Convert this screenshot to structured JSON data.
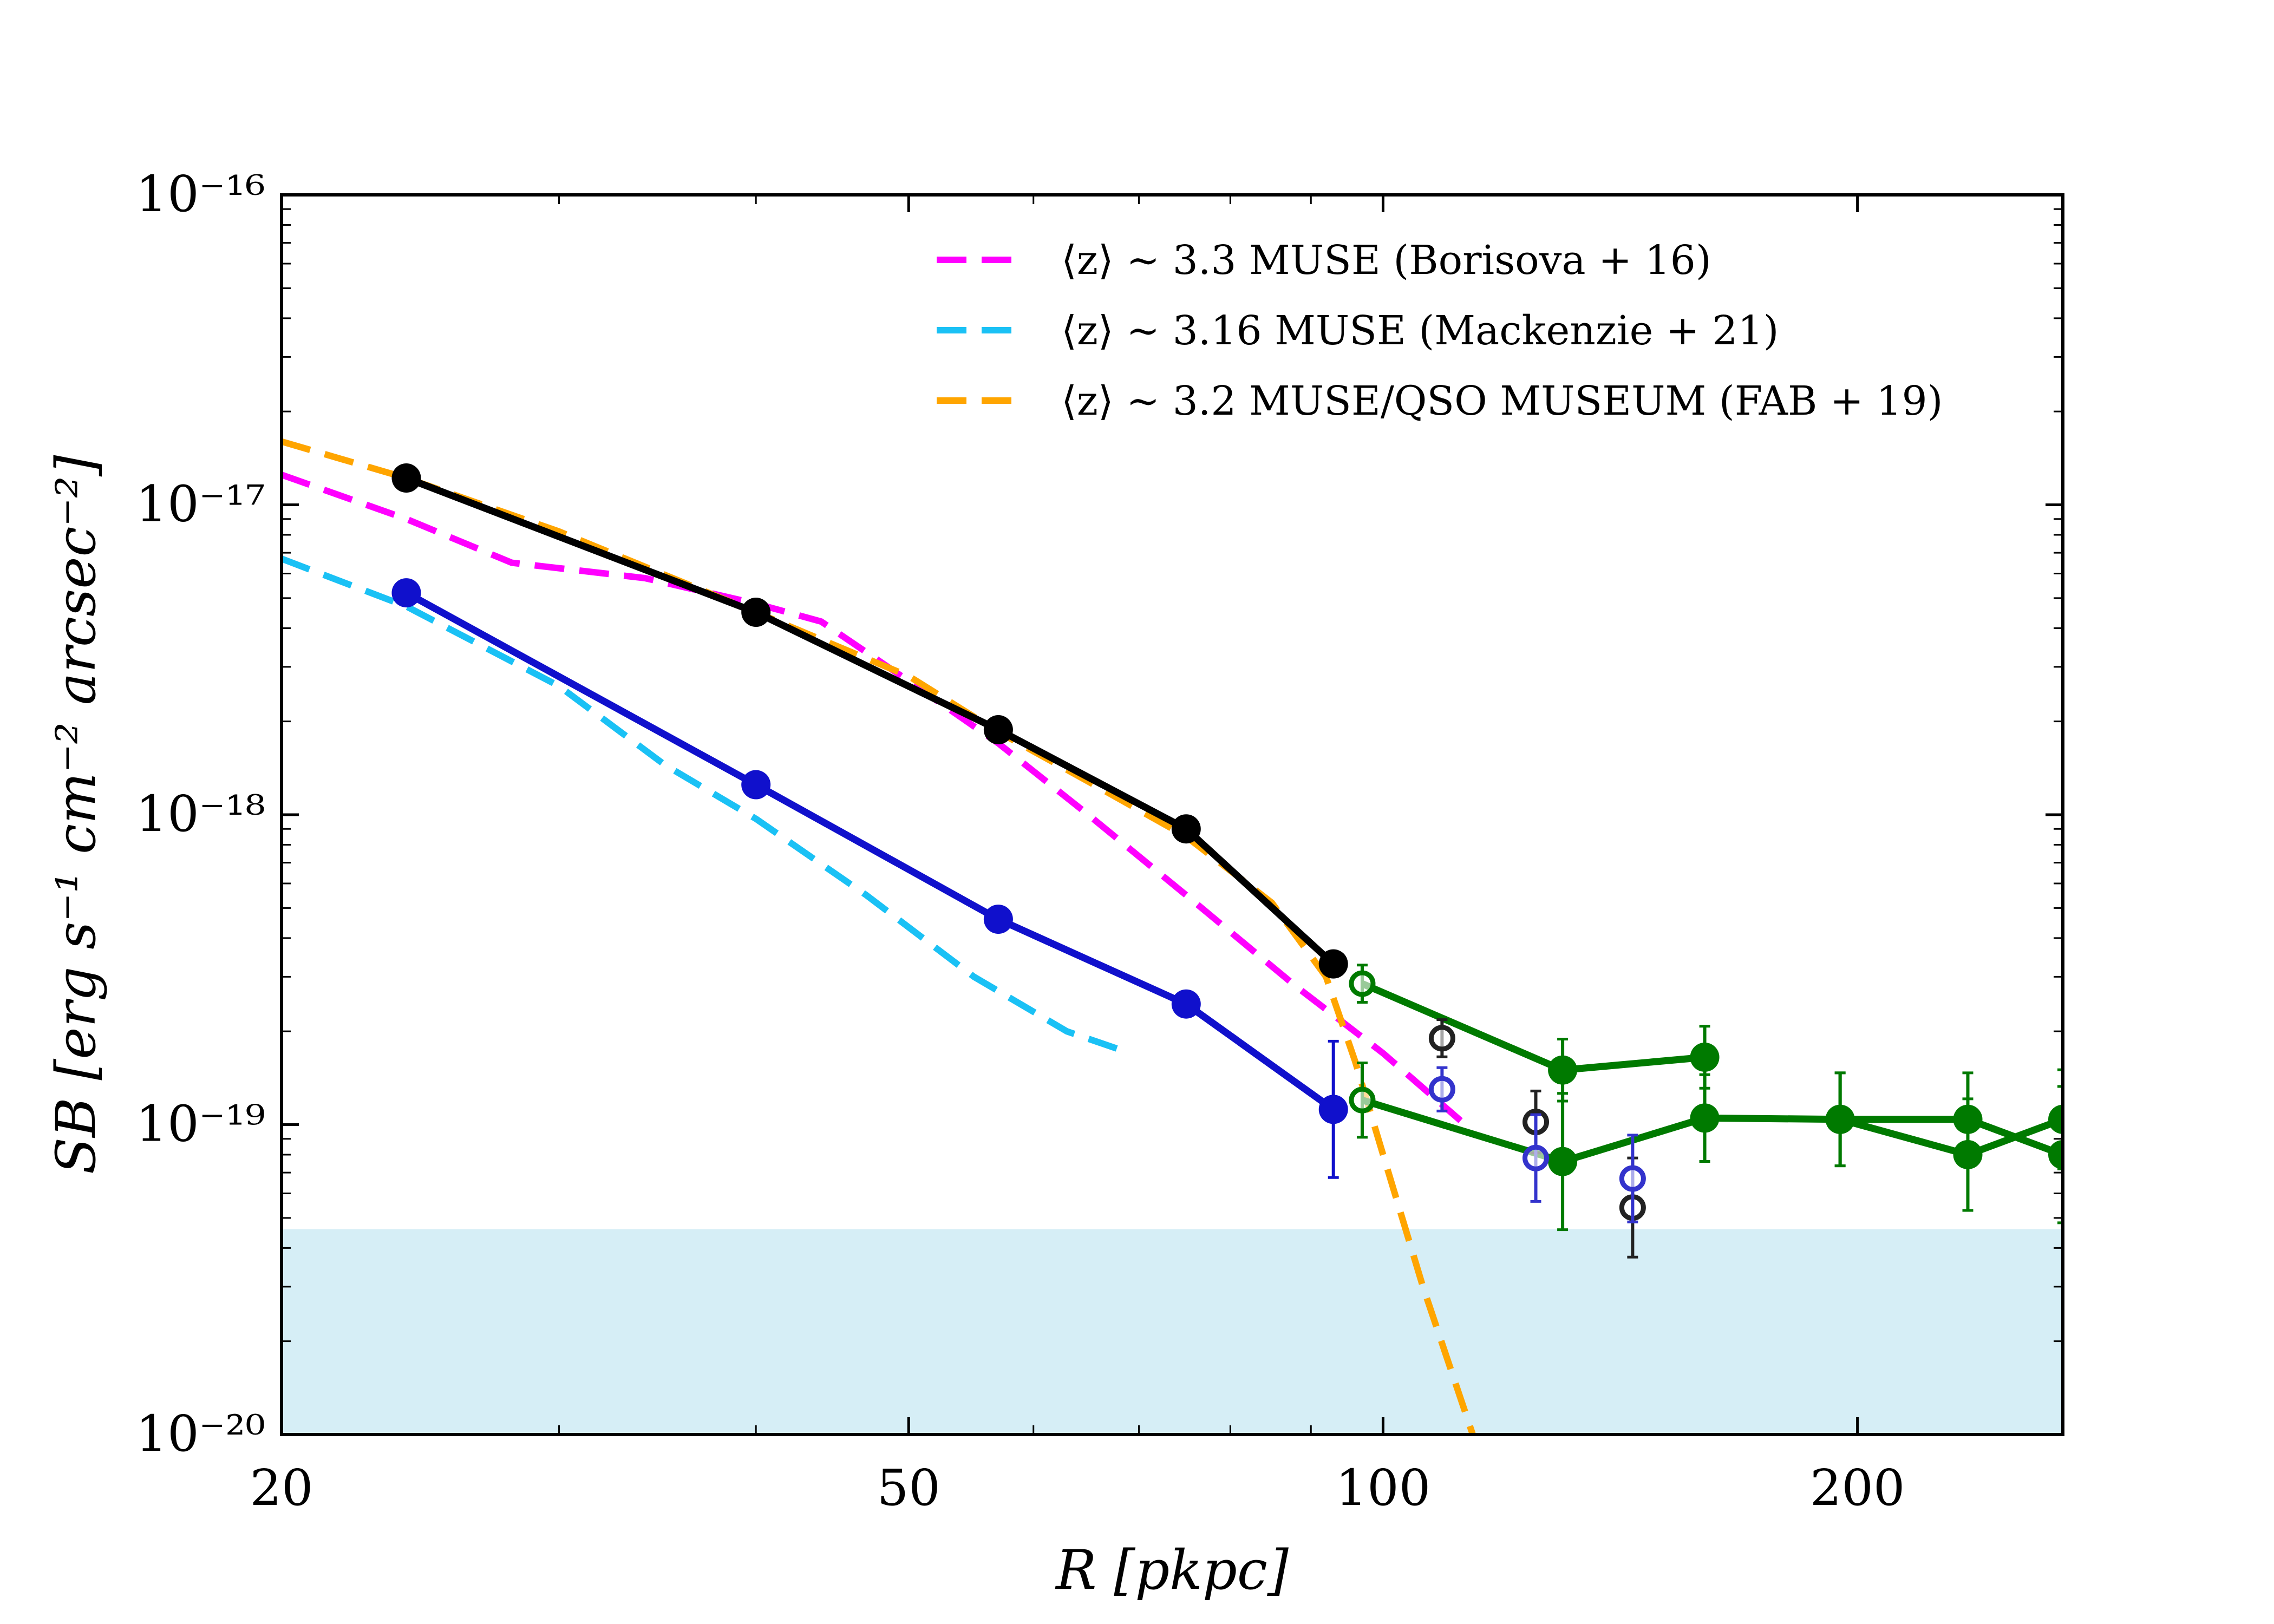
{
  "chart_data": {
    "type": "line",
    "x_scale": "log",
    "y_scale": "log",
    "xlim": [
      20,
      270
    ],
    "ylim": [
      1e-20,
      1e-16
    ],
    "xlabel": "R [pkpc]",
    "ylabel": "SB [erg s⁻¹ cm⁻² arcsec⁻²]",
    "x_ticks": [
      {
        "value": 20,
        "label": "20"
      },
      {
        "value": 50,
        "label": "50"
      },
      {
        "value": 100,
        "label": "100"
      },
      {
        "value": 200,
        "label": "200"
      }
    ],
    "y_ticks": [
      {
        "value": 1e-16,
        "label": "10⁻¹⁶"
      },
      {
        "value": 1e-17,
        "label": "10⁻¹⁷"
      },
      {
        "value": 1e-18,
        "label": "10⁻¹⁸"
      },
      {
        "value": 1e-19,
        "label": "10⁻¹⁹"
      },
      {
        "value": 1e-20,
        "label": "10⁻²⁰"
      }
    ],
    "shaded_region": {
      "y_min": 1e-20,
      "y_max": 4.6e-20,
      "color": "#d6eef6"
    },
    "legend": [
      {
        "label": "⟨z⟩ ∼ 3.3 MUSE (Borisova + 16)",
        "color": "#ff00ff"
      },
      {
        "label": "⟨z⟩ ∼ 3.16 MUSE (Mackenzie + 21)",
        "color": "#1ac1f5"
      },
      {
        "label": "⟨z⟩ ∼ 3.2 MUSE/QSO MUSEUM (FAB + 19)",
        "color": "#ffa500"
      }
    ],
    "series": [
      {
        "name": "Borisova + 16",
        "style": "dashed",
        "color": "#ff00ff",
        "x": [
          20,
          24,
          28,
          34,
          40,
          44,
          50,
          57,
          65,
          75,
          88,
          100,
          112
        ],
        "y": [
          1.25e-17,
          9e-18,
          6.5e-18,
          5.8e-18,
          4.8e-18,
          4.2e-18,
          2.7e-18,
          1.7e-18,
          1e-18,
          5.5e-19,
          2.8e-19,
          1.7e-19,
          1.03e-19
        ]
      },
      {
        "name": "Mackenzie + 21",
        "style": "dashed",
        "color": "#1ac1f5",
        "x": [
          20,
          24,
          30,
          35,
          40,
          47,
          55,
          63,
          68
        ],
        "y": [
          6.7e-18,
          4.7e-18,
          2.6e-18,
          1.45e-18,
          9.7e-19,
          5.5e-19,
          3e-19,
          2e-19,
          1.75e-19
        ]
      },
      {
        "name": "FAB + 19",
        "style": "dashed",
        "color": "#ffa500",
        "x": [
          20,
          24,
          30,
          40,
          50,
          57,
          65,
          75,
          85,
          92,
          96,
          100,
          106,
          114
        ],
        "y": [
          1.6e-17,
          1.22e-17,
          8.2e-18,
          4.5e-18,
          2.8e-18,
          1.85e-18,
          1.28e-18,
          8.5e-19,
          5.2e-19,
          3e-19,
          1.6e-19,
          8e-20,
          3e-20,
          1e-20
        ]
      },
      {
        "name": "black (filled)",
        "style": "solid-markers",
        "color": "#000000",
        "x": [
          24,
          40,
          57,
          75,
          93
        ],
        "y": [
          1.22e-17,
          4.5e-18,
          1.88e-18,
          9e-19,
          3.3e-19
        ]
      },
      {
        "name": "blue (filled)",
        "style": "solid-markers",
        "color": "#1010cc",
        "x": [
          24,
          40,
          57,
          75,
          93
        ],
        "y": [
          5.2e-18,
          1.25e-18,
          4.6e-19,
          2.45e-19,
          1.12e-19
        ],
        "yerr": [
          null,
          null,
          null,
          null,
          0.22
        ]
      },
      {
        "name": "green upper (filled)",
        "style": "solid-markers",
        "color": "#007a00",
        "x": [
          97,
          130,
          160
        ],
        "y": [
          2.85e-19,
          1.5e-19,
          1.65e-19
        ],
        "yerr": [
          0.06,
          0.1,
          0.1
        ],
        "hollow": [
          true,
          false,
          false
        ]
      },
      {
        "name": "green lower (filled)",
        "style": "solid-markers",
        "color": "#007a00",
        "x": [
          97,
          130,
          160,
          195,
          235,
          270
        ],
        "y": [
          1.2e-19,
          7.6e-20,
          1.05e-19,
          1.04e-19,
          8e-20,
          1.04e-19
        ],
        "yerr": [
          0.12,
          0.22,
          0.14,
          0.15,
          0.18,
          0.16
        ],
        "hollow": [
          true,
          false,
          false,
          false,
          false,
          false
        ]
      },
      {
        "name": "green cross (filled)",
        "style": "solid-markers",
        "color": "#007a00",
        "x": [
          195,
          235,
          270
        ],
        "y": [
          1.04e-19,
          1.04e-19,
          8e-20
        ],
        "yerr": [
          0.15,
          0.15,
          0.22
        ]
      },
      {
        "name": "black (open)",
        "style": "markers-open",
        "color": "#222222",
        "x": [
          109,
          125,
          144
        ],
        "y": [
          1.9e-19,
          1.02e-19,
          5.4e-20
        ],
        "yerr": [
          0.06,
          0.1,
          0.16
        ]
      },
      {
        "name": "blue (open)",
        "style": "markers-open",
        "color": "#3333cc",
        "x": [
          109,
          125,
          144
        ],
        "y": [
          1.3e-19,
          7.8e-20,
          6.7e-20
        ],
        "yerr": [
          0.07,
          0.14,
          0.14
        ]
      }
    ]
  }
}
